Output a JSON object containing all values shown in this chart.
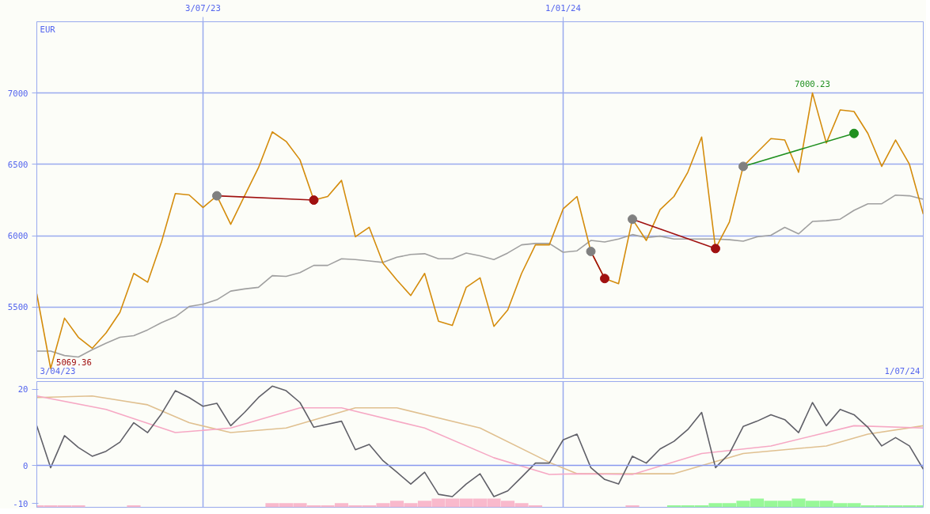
{
  "chart_data": [
    {
      "type": "line",
      "ylabel": "EUR",
      "xlim": [
        "2023-04-10",
        "2024-07-01"
      ],
      "ylim": [
        5000,
        7500
      ],
      "yticks": [
        5500,
        6000,
        6500,
        7000
      ],
      "xticks": [
        {
          "value": "2023-07-03",
          "label": "3/07/23"
        },
        {
          "value": "2024-01-01",
          "label": "1/01/24"
        }
      ],
      "grid": true,
      "marker": "none",
      "line_style": "solid",
      "x": [
        "2023-04-10",
        "2023-04-17",
        "2023-04-24",
        "2023-05-01",
        "2023-05-08",
        "2023-05-15",
        "2023-05-22",
        "2023-05-29",
        "2023-06-05",
        "2023-06-12",
        "2023-06-19",
        "2023-06-26",
        "2023-07-03",
        "2023-07-10",
        "2023-07-17",
        "2023-07-24",
        "2023-07-31",
        "2023-08-07",
        "2023-08-14",
        "2023-08-21",
        "2023-08-28",
        "2023-09-04",
        "2023-09-11",
        "2023-09-18",
        "2023-09-25",
        "2023-10-02",
        "2023-10-09",
        "2023-10-16",
        "2023-10-23",
        "2023-10-30",
        "2023-11-06",
        "2023-11-13",
        "2023-11-20",
        "2023-11-27",
        "2023-12-04",
        "2023-12-11",
        "2023-12-18",
        "2023-12-25",
        "2024-01-01",
        "2024-01-08",
        "2024-01-15",
        "2024-01-22",
        "2024-01-29",
        "2024-02-05",
        "2024-02-12",
        "2024-02-19",
        "2024-02-26",
        "2024-03-04",
        "2024-03-11",
        "2024-03-18",
        "2024-03-25",
        "2024-04-01",
        "2024-04-08",
        "2024-04-15",
        "2024-04-22",
        "2024-04-29",
        "2024-05-06",
        "2024-05-13",
        "2024-05-20",
        "2024-05-27",
        "2024-06-03",
        "2024-06-10",
        "2024-06-17",
        "2024-06-24",
        "2024-07-01"
      ],
      "series": [
        {
          "color": "#a0a0a0",
          "values": [
            5191,
            5191,
            5160,
            5150,
            5201,
            5247,
            5288,
            5299,
            5340,
            5391,
            5432,
            5504,
            5520,
            5551,
            5612,
            5627,
            5638,
            5720,
            5715,
            5741,
            5792,
            5792,
            5838,
            5833,
            5823,
            5813,
            5849,
            5869,
            5874,
            5838,
            5838,
            5879,
            5859,
            5833,
            5879,
            5936,
            5946,
            5946,
            5884,
            5894,
            5967,
            5956,
            5977,
            6008,
            5987,
            5997,
            5977,
            5977,
            5977,
            5977,
            5972,
            5962,
            5992,
            6003,
            6059,
            6013,
            6100,
            6105,
            6116,
            6178,
            6224,
            6224,
            6285,
            6280,
            6255
          ]
        },
        {
          "color": "#d48c0c",
          "values": [
            5592,
            5069.36,
            5422,
            5288,
            5211,
            5319,
            5463,
            5736,
            5674,
            5956,
            6296,
            6286,
            6198,
            6280,
            6080,
            6280,
            6476,
            6728,
            6661,
            6532,
            6250,
            6275,
            6388,
            5993,
            6059,
            5807,
            5689,
            5581,
            5736,
            5401,
            5371,
            5638,
            5705,
            5365,
            5479,
            5736,
            5936,
            5936,
            6188,
            6275,
            5890,
            5700,
            5664,
            6116,
            5967,
            6183,
            6275,
            6445,
            6692,
            5910,
            6095,
            6486,
            6584,
            6681,
            6671,
            6445,
            7000.23,
            6650,
            6882,
            6871,
            6717,
            6486,
            6671,
            6501,
            6152
          ]
        },
        {
          "color": "#a01010",
          "marker": "circle",
          "x": [
            "2023-07-10",
            "2023-08-28"
          ],
          "values": [
            6280,
            6250
          ],
          "colors": [
            "#808080",
            "#a01010"
          ]
        },
        {
          "color": "#a01010",
          "marker": "circle",
          "x": [
            "2024-01-15",
            "2024-01-22"
          ],
          "values": [
            5890,
            5700
          ],
          "colors": [
            "#808080",
            "#a01010"
          ]
        },
        {
          "color": "#a01010",
          "marker": "circle",
          "x": [
            "2024-02-05",
            "2024-03-18"
          ],
          "values": [
            6116,
            5910
          ],
          "colors": [
            "#808080",
            "#a01010"
          ]
        },
        {
          "color": "#209020",
          "marker": "circle",
          "x": [
            "2024-04-01",
            "2024-05-27"
          ],
          "values": [
            6486,
            6717
          ],
          "colors": [
            "#808080",
            "#209020"
          ]
        }
      ],
      "annotations": [
        "3/04/23",
        "1/07/24",
        {
          "text": "5069.36",
          "x": "2023-04-17",
          "y": 5069.36
        },
        {
          "text": "7000.23",
          "x": "2024-05-06",
          "y": 7000.23
        }
      ]
    },
    {
      "type": "line",
      "xlim": [
        "2023-04-10",
        "2024-07-01"
      ],
      "ylim": [
        -11,
        22
      ],
      "yticks": [
        -10,
        0,
        20
      ],
      "xticks": [
        {
          "value": "2023-07-03",
          "label": null
        },
        {
          "value": "2024-01-01",
          "label": null
        }
      ],
      "tick_labels": "y",
      "grid": "x",
      "marker": "none",
      "line_style": "solid",
      "ref_lines": [
        {
          "axis": "y",
          "value": 0,
          "label": null,
          "color": "#8899ee"
        }
      ],
      "x": [
        "2023-04-10",
        "2023-04-17",
        "2023-04-24",
        "2023-05-01",
        "2023-05-08",
        "2023-05-15",
        "2023-05-22",
        "2023-05-29",
        "2023-06-05",
        "2023-06-12",
        "2023-06-19",
        "2023-06-26",
        "2023-07-03",
        "2023-07-10",
        "2023-07-17",
        "2023-07-24",
        "2023-07-31",
        "2023-08-07",
        "2023-08-14",
        "2023-08-21",
        "2023-08-28",
        "2023-09-04",
        "2023-09-11",
        "2023-09-18",
        "2023-09-25",
        "2023-10-02",
        "2023-10-09",
        "2023-10-16",
        "2023-10-23",
        "2023-10-30",
        "2023-11-06",
        "2023-11-13",
        "2023-11-20",
        "2023-11-27",
        "2023-12-04",
        "2023-12-11",
        "2023-12-18",
        "2023-12-25",
        "2024-01-01",
        "2024-01-08",
        "2024-01-15",
        "2024-01-22",
        "2024-01-29",
        "2024-02-05",
        "2024-02-12",
        "2024-02-19",
        "2024-02-26",
        "2024-03-04",
        "2024-03-11",
        "2024-03-18",
        "2024-03-25",
        "2024-04-01",
        "2024-04-08",
        "2024-04-15",
        "2024-04-22",
        "2024-04-29",
        "2024-05-06",
        "2024-05-13",
        "2024-05-20",
        "2024-05-27",
        "2024-06-03",
        "2024-06-10",
        "2024-06-17",
        "2024-06-24",
        "2024-07-01"
      ],
      "series": [
        {
          "type": "bar",
          "values": [
            0.5,
            0.5,
            0.5,
            0.5,
            null,
            null,
            null,
            0.5,
            null,
            null,
            null,
            null,
            null,
            null,
            null,
            null,
            null,
            1.1,
            1.1,
            1.1,
            0.5,
            0.5,
            1.1,
            0.5,
            0.5,
            1.1,
            1.7,
            1.1,
            1.7,
            2.3,
            2.3,
            2.3,
            2.3,
            2.3,
            1.7,
            1.1,
            0.5,
            null,
            null,
            null,
            null,
            null,
            null,
            0.5,
            null,
            null,
            0.5,
            0.5,
            0.5,
            1.1,
            1.1,
            1.7,
            2.3,
            1.7,
            1.7,
            2.3,
            1.7,
            1.7,
            1.1,
            1.1,
            0.5,
            0.5,
            0.5,
            0.5,
            0.5
          ],
          "base": [
            -11,
            -11,
            -11,
            -11,
            null,
            null,
            null,
            -11,
            null,
            null,
            null,
            null,
            null,
            null,
            null,
            null,
            null,
            -11,
            -11,
            -11,
            -11,
            -11,
            -11,
            -11,
            -11,
            -11,
            -11,
            -11,
            -11,
            -11,
            -11,
            -11,
            -11,
            -11,
            -11,
            -11,
            -11,
            null,
            null,
            null,
            null,
            null,
            null,
            -11,
            null,
            null,
            -11,
            -11,
            -11,
            -11,
            -11,
            -11,
            -11,
            -11,
            -11,
            -11,
            -11,
            -11,
            -11,
            -11,
            -11,
            -11,
            -11,
            -11,
            -11
          ],
          "colors": [
            "#f9b9cc",
            "#f9b9cc",
            "#f9b9cc",
            "#f9b9cc",
            null,
            null,
            null,
            "#f9b9cc",
            null,
            null,
            null,
            null,
            null,
            null,
            null,
            null,
            null,
            "#f9b9cc",
            "#f9b9cc",
            "#f9b9cc",
            "#f9b9cc",
            "#f9b9cc",
            "#f9b9cc",
            "#f9b9cc",
            "#f9b9cc",
            "#f9b9cc",
            "#f9b9cc",
            "#f9b9cc",
            "#f9b9cc",
            "#f9b9cc",
            "#f9b9cc",
            "#f9b9cc",
            "#f9b9cc",
            "#f9b9cc",
            "#f9b9cc",
            "#f9b9cc",
            "#f9b9cc",
            null,
            null,
            null,
            null,
            null,
            null,
            "#f9b9cc",
            null,
            null,
            "#98f898",
            "#98f898",
            "#98f898",
            "#98f898",
            "#98f898",
            "#98f898",
            "#98f898",
            "#98f898",
            "#98f898",
            "#98f898",
            "#98f898",
            "#98f898",
            "#98f898",
            "#98f898",
            "#98f898",
            "#98f898",
            "#98f898",
            "#98f898",
            "#98f898"
          ]
        },
        {
          "color": "#e0c090",
          "x": [
            "2023-04-10",
            "2023-05-08",
            "2023-06-05",
            "2023-06-26",
            "2023-07-17",
            "2023-08-14",
            "2023-09-18",
            "2023-10-09",
            "2023-11-20",
            "2023-12-25",
            "2024-01-08",
            "2024-01-29",
            "2024-02-26",
            "2024-04-01",
            "2024-05-13",
            "2024-06-03",
            "2024-07-01"
          ],
          "values": [
            17.8,
            18.2,
            15.9,
            11.2,
            8.6,
            9.8,
            15.1,
            15.1,
            9.8,
            0.8,
            -2.2,
            -2.2,
            -2.2,
            3.1,
            5.1,
            8.2,
            10.4
          ]
        },
        {
          "color": "#f6a8c4",
          "x": [
            "2023-04-10",
            "2023-05-15",
            "2023-06-19",
            "2023-07-17",
            "2023-08-21",
            "2023-09-11",
            "2023-10-23",
            "2023-11-27",
            "2023-12-25",
            "2024-01-08",
            "2024-02-05",
            "2024-03-11",
            "2024-04-15",
            "2024-05-27",
            "2024-07-01"
          ],
          "values": [
            18.2,
            14.7,
            8.6,
            9.8,
            15.1,
            15.1,
            9.8,
            2.0,
            -2.4,
            -2.2,
            -2.4,
            3.1,
            5.1,
            10.4,
            9.8
          ]
        },
        {
          "color": "#606068",
          "values": [
            10.4,
            -0.6,
            7.8,
            4.7,
            2.4,
            3.7,
            6.1,
            11.2,
            8.6,
            13.5,
            19.6,
            17.8,
            15.5,
            16.3,
            10.4,
            13.9,
            17.8,
            20.8,
            19.6,
            16.5,
            10,
            10.8,
            11.6,
            4.1,
            5.5,
            1.2,
            -1.8,
            -4.9,
            -1.8,
            -7.6,
            -8.2,
            -4.9,
            -2.2,
            -8.2,
            -6.7,
            -3.1,
            0.6,
            0.6,
            6.7,
            8.2,
            -0.6,
            -3.7,
            -4.9,
            2.4,
            0.6,
            4.3,
            6.3,
            9.4,
            13.9,
            -0.6,
            3.1,
            10.2,
            11.6,
            13.3,
            12,
            8.6,
            16.5,
            10.4,
            14.7,
            13.3,
            10,
            5.1,
            7.3,
            5.1,
            -1
          ]
        }
      ]
    }
  ]
}
